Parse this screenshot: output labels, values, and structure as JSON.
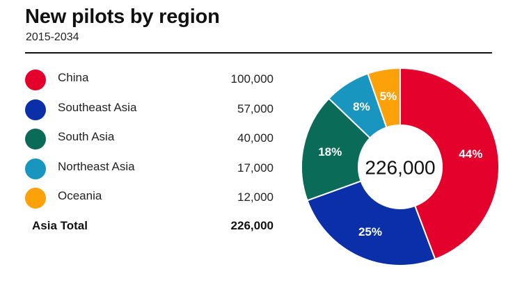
{
  "header": {
    "title": "New pilots by region",
    "subtitle": "2015-2034"
  },
  "legend": {
    "items": [
      {
        "label": "China",
        "value": "100,000",
        "color": "#e4022d"
      },
      {
        "label": "Southeast Asia",
        "value": "57,000",
        "color": "#0a2fa8"
      },
      {
        "label": "South Asia",
        "value": "40,000",
        "color": "#0a6b58"
      },
      {
        "label": "Northeast Asia",
        "value": "17,000",
        "color": "#1896bf"
      },
      {
        "label": "Oceania",
        "value": "12,000",
        "color": "#fda10b"
      }
    ],
    "total_label": "Asia Total",
    "total_value": "226,000"
  },
  "chart_data": {
    "type": "pie",
    "title": "New pilots by region",
    "subtitle": "2015-2034",
    "categories": [
      "China",
      "Southeast Asia",
      "South Asia",
      "Northeast Asia",
      "Oceania"
    ],
    "values": [
      100000,
      57000,
      40000,
      17000,
      12000
    ],
    "percent_labels": [
      "44%",
      "25%",
      "18%",
      "8%",
      "5%"
    ],
    "colors": [
      "#e4022d",
      "#0a2fa8",
      "#0a6b58",
      "#1896bf",
      "#fda10b"
    ],
    "center_label": "226,000",
    "donut": true,
    "legend_position": "left"
  }
}
